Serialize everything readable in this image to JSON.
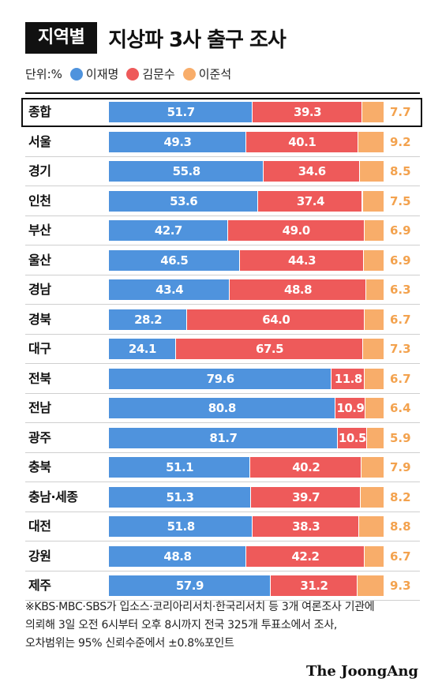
{
  "header": {
    "tag": "지역별",
    "title": "지상파 3사 출구 조사"
  },
  "legend": {
    "unit": "단위:%",
    "items": [
      {
        "label": "이재명",
        "color": "#4f93dd"
      },
      {
        "label": "김문수",
        "color": "#ee5a5a"
      },
      {
        "label": "이준석",
        "color": "#f8ad6a"
      }
    ]
  },
  "chart_data": {
    "type": "bar",
    "stacked": true,
    "orientation": "horizontal",
    "xlim": [
      0,
      100
    ],
    "categories": [
      "종합",
      "서울",
      "경기",
      "인천",
      "부산",
      "울산",
      "경남",
      "경북",
      "대구",
      "전북",
      "전남",
      "광주",
      "충북",
      "충남·세종",
      "대전",
      "강원",
      "제주"
    ],
    "series": [
      {
        "name": "이재명",
        "color": "#4f93dd",
        "values": [
          51.7,
          49.3,
          55.8,
          53.6,
          42.7,
          46.5,
          43.4,
          28.2,
          24.1,
          79.6,
          80.8,
          81.7,
          51.1,
          51.3,
          51.8,
          48.8,
          57.9
        ]
      },
      {
        "name": "김문수",
        "color": "#ee5a5a",
        "values": [
          39.3,
          40.1,
          34.6,
          37.4,
          49.0,
          44.3,
          48.8,
          64.0,
          67.5,
          11.8,
          10.9,
          10.5,
          40.2,
          39.7,
          38.3,
          42.2,
          31.2
        ]
      },
      {
        "name": "이준석",
        "color": "#f8ad6a",
        "values": [
          7.7,
          9.2,
          8.5,
          7.5,
          6.9,
          6.9,
          6.3,
          6.7,
          7.3,
          6.7,
          6.4,
          5.9,
          7.9,
          8.2,
          8.8,
          6.7,
          9.3
        ]
      }
    ]
  },
  "note": {
    "lines": [
      "※KBS·MBC·SBS가 입소스·코리아리서치·한국리서치 등 3개 여론조사 기관에",
      "의뢰해 3일 오전 6시부터 오후 8시까지 전국 325개 투표소에서 조사,",
      "오차범위는 95% 신뢰수준에서 ±0.8%포인트"
    ]
  },
  "brand": "The JoongAng"
}
